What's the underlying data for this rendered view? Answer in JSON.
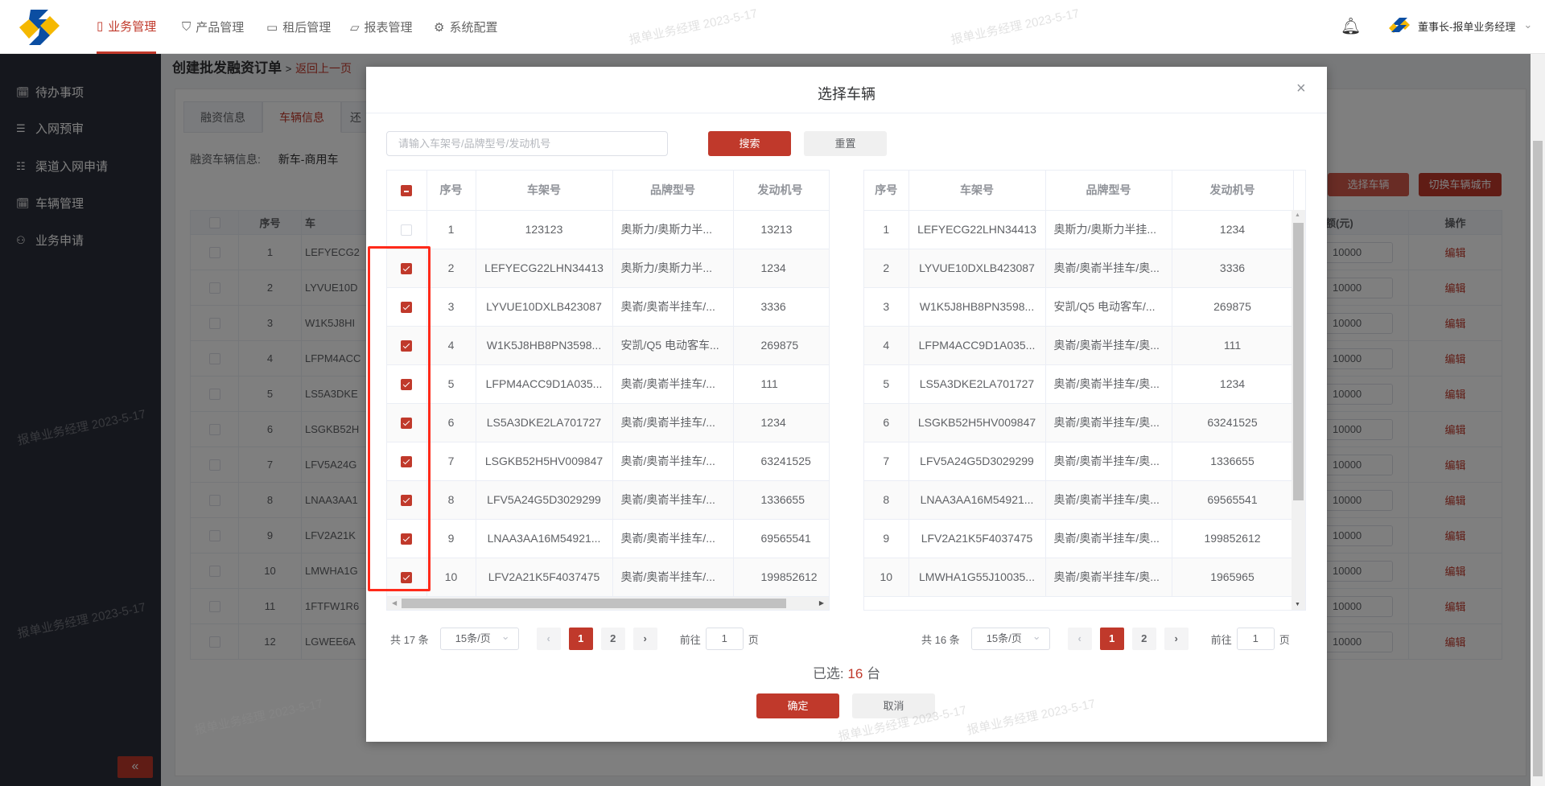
{
  "header": {
    "nav": [
      {
        "label": "业务管理",
        "icon": "book-icon",
        "active": true
      },
      {
        "label": "产品管理",
        "icon": "bookmark-icon"
      },
      {
        "label": "租后管理",
        "icon": "monitor-icon"
      },
      {
        "label": "报表管理",
        "icon": "folder-icon"
      },
      {
        "label": "系统配置",
        "icon": "gear-icon"
      }
    ],
    "user": "董事长-报单业务经理"
  },
  "sidebar": {
    "items": [
      {
        "label": "待办事项",
        "icon": "calendar-check-icon"
      },
      {
        "label": "入网预审",
        "icon": "list-icon"
      },
      {
        "label": "渠道入网申请",
        "icon": "grid-list-icon"
      },
      {
        "label": "车辆管理",
        "icon": "calendar-check-icon"
      },
      {
        "label": "业务申请",
        "icon": "user-icon"
      }
    ],
    "collapse": "«"
  },
  "page": {
    "title": "创建批发融资订单",
    "separator": ">",
    "back": "返回上一页",
    "tabs": [
      "融资信息",
      "车辆信息",
      "还"
    ],
    "vehicle_info_label": "融资车辆信息:",
    "vehicle_info_value": "新车-商用车",
    "select_vehicle": "选择车辆",
    "switch_city": "切换车辆城市",
    "table": {
      "headers": [
        "",
        "序号",
        "车",
        "申请融资额(元)",
        "操作"
      ],
      "rows": [
        [
          "1",
          "LEFYECG2"
        ],
        [
          "2",
          "LYVUE10D"
        ],
        [
          "3",
          "W1K5J8HI"
        ],
        [
          "4",
          "LFPM4ACC"
        ],
        [
          "5",
          "LS5A3DKE"
        ],
        [
          "6",
          "LSGKB52H"
        ],
        [
          "7",
          "LFV5A24G"
        ],
        [
          "8",
          "LNAA3AA1"
        ],
        [
          "9",
          "LFV2A21K"
        ],
        [
          "10",
          "LMWHA1G"
        ],
        [
          "11",
          "1FTFW1R6"
        ],
        [
          "12",
          "LGWEE6A"
        ]
      ],
      "amount": "10000",
      "edit": "编辑"
    }
  },
  "modal": {
    "title": "选择车辆",
    "close": "×",
    "search_placeholder": "请输入车架号/品牌型号/发动机号",
    "search_value": "",
    "search_btn": "搜索",
    "reset_btn": "重置",
    "left": {
      "headers": [
        "序号",
        "车架号",
        "品牌型号",
        "发动机号"
      ],
      "rows": [
        {
          "no": "1",
          "vin": "123123",
          "brand": "奥斯力/奥斯力半...",
          "engine": "13213",
          "checked": false
        },
        {
          "no": "2",
          "vin": "LEFYECG22LHN34413",
          "brand": "奥斯力/奥斯力半...",
          "engine": "1234",
          "checked": true
        },
        {
          "no": "3",
          "vin": "LYVUE10DXLB423087",
          "brand": "奥嵛/奥嵛半挂车/...",
          "engine": "3336",
          "checked": true
        },
        {
          "no": "4",
          "vin": "W1K5J8HB8PN3598...",
          "brand": "安凯/Q5 电动客车...",
          "engine": "269875",
          "checked": true
        },
        {
          "no": "5",
          "vin": "LFPM4ACC9D1A035...",
          "brand": "奥嵛/奥嵛半挂车/...",
          "engine": "111",
          "checked": true
        },
        {
          "no": "6",
          "vin": "LS5A3DKE2LA701727",
          "brand": "奥嵛/奥嵛半挂车/...",
          "engine": "1234",
          "checked": true
        },
        {
          "no": "7",
          "vin": "LSGKB52H5HV009847",
          "brand": "奥嵛/奥嵛半挂车/...",
          "engine": "63241525",
          "checked": true
        },
        {
          "no": "8",
          "vin": "LFV5A24G5D3029299",
          "brand": "奥嵛/奥嵛半挂车/...",
          "engine": "1336655",
          "checked": true
        },
        {
          "no": "9",
          "vin": "LNAA3AA16M54921...",
          "brand": "奥嵛/奥嵛半挂车/...",
          "engine": "69565541",
          "checked": true
        },
        {
          "no": "10",
          "vin": "LFV2A21K5F4037475",
          "brand": "奥嵛/奥嵛半挂车/...",
          "engine": "199852612",
          "checked": true
        }
      ],
      "pagination": {
        "total": "共 17 条",
        "page_size": "15条/页",
        "pages": [
          "1",
          "2"
        ],
        "current": "1",
        "goto": "前往",
        "goto_value": "1",
        "page_unit": "页"
      }
    },
    "right": {
      "headers": [
        "序号",
        "车架号",
        "品牌型号",
        "发动机号"
      ],
      "rows": [
        {
          "no": "1",
          "vin": "LEFYECG22LHN34413",
          "brand": "奥斯力/奥斯力半挂...",
          "engine": "1234"
        },
        {
          "no": "2",
          "vin": "LYVUE10DXLB423087",
          "brand": "奥嵛/奥嵛半挂车/奥...",
          "engine": "3336"
        },
        {
          "no": "3",
          "vin": "W1K5J8HB8PN3598...",
          "brand": "安凯/Q5 电动客车/...",
          "engine": "269875"
        },
        {
          "no": "4",
          "vin": "LFPM4ACC9D1A035...",
          "brand": "奥嵛/奥嵛半挂车/奥...",
          "engine": "111"
        },
        {
          "no": "5",
          "vin": "LS5A3DKE2LA701727",
          "brand": "奥嵛/奥嵛半挂车/奥...",
          "engine": "1234"
        },
        {
          "no": "6",
          "vin": "LSGKB52H5HV009847",
          "brand": "奥嵛/奥嵛半挂车/奥...",
          "engine": "63241525"
        },
        {
          "no": "7",
          "vin": "LFV5A24G5D3029299",
          "brand": "奥嵛/奥嵛半挂车/奥...",
          "engine": "1336655"
        },
        {
          "no": "8",
          "vin": "LNAA3AA16M54921...",
          "brand": "奥嵛/奥嵛半挂车/奥...",
          "engine": "69565541"
        },
        {
          "no": "9",
          "vin": "LFV2A21K5F4037475",
          "brand": "奥嵛/奥嵛半挂车/奥...",
          "engine": "199852612"
        },
        {
          "no": "10",
          "vin": "LMWHA1G55J10035...",
          "brand": "奥嵛/奥嵛半挂车/奥...",
          "engine": "1965965"
        }
      ],
      "pagination": {
        "total": "共 16 条",
        "page_size": "15条/页",
        "pages": [
          "1",
          "2"
        ],
        "current": "1",
        "goto": "前往",
        "goto_value": "1",
        "page_unit": "页"
      }
    },
    "selected_prefix": "已选:",
    "selected_count": "16",
    "selected_unit": "台",
    "confirm": "确定",
    "cancel": "取消"
  },
  "watermark": "报单业务经理 2023-5-17",
  "colors": {
    "primary": "#c0392b",
    "sidebar": "#2b2f3a",
    "highlight": "#ff2a1a"
  }
}
